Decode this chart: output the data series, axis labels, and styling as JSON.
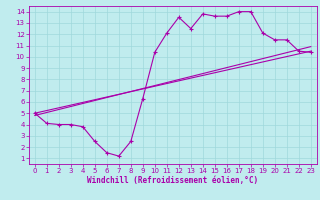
{
  "xlabel": "Windchill (Refroidissement éolien,°C)",
  "background_color": "#c0ecee",
  "line_color": "#aa00aa",
  "grid_color": "#a0d8dc",
  "xlim": [
    -0.5,
    23.5
  ],
  "ylim": [
    0.5,
    14.5
  ],
  "xticks": [
    0,
    1,
    2,
    3,
    4,
    5,
    6,
    7,
    8,
    9,
    10,
    11,
    12,
    13,
    14,
    15,
    16,
    17,
    18,
    19,
    20,
    21,
    22,
    23
  ],
  "yticks": [
    1,
    2,
    3,
    4,
    5,
    6,
    7,
    8,
    9,
    10,
    11,
    12,
    13,
    14
  ],
  "line1_x": [
    0,
    1,
    2,
    3,
    4,
    5,
    6,
    7,
    8,
    9,
    10,
    11,
    12,
    13,
    14,
    15,
    16,
    17,
    18,
    19,
    20,
    21,
    22,
    23
  ],
  "line1_y": [
    5.0,
    4.1,
    4.0,
    4.0,
    3.8,
    2.5,
    1.5,
    1.2,
    2.5,
    6.3,
    10.4,
    12.1,
    13.5,
    12.5,
    13.8,
    13.6,
    13.6,
    14.0,
    14.0,
    12.1,
    11.5,
    11.5,
    10.5,
    10.4
  ],
  "line2_x": [
    0,
    23
  ],
  "line2_y": [
    5.0,
    10.5
  ],
  "line3_x": [
    0,
    23
  ],
  "line3_y": [
    4.8,
    10.9
  ],
  "xlabel_fontsize": 5.5,
  "tick_fontsize": 5.0
}
